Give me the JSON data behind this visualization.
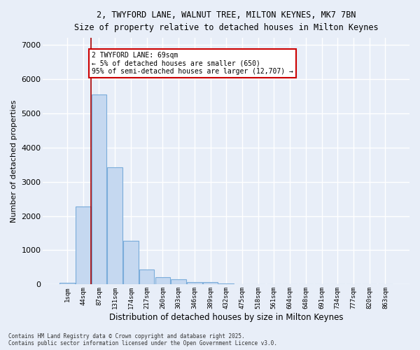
{
  "title_line1": "2, TWYFORD LANE, WALNUT TREE, MILTON KEYNES, MK7 7BN",
  "title_line2": "Size of property relative to detached houses in Milton Keynes",
  "xlabel": "Distribution of detached houses by size in Milton Keynes",
  "ylabel": "Number of detached properties",
  "categories": [
    "1sqm",
    "44sqm",
    "87sqm",
    "131sqm",
    "174sqm",
    "217sqm",
    "260sqm",
    "303sqm",
    "346sqm",
    "389sqm",
    "432sqm",
    "475sqm",
    "518sqm",
    "561sqm",
    "604sqm",
    "648sqm",
    "691sqm",
    "734sqm",
    "777sqm",
    "820sqm",
    "863sqm"
  ],
  "values": [
    50,
    2280,
    5550,
    3430,
    1280,
    430,
    210,
    160,
    80,
    60,
    20,
    0,
    0,
    0,
    0,
    0,
    0,
    0,
    0,
    0,
    0
  ],
  "bar_color": "#c5d8f0",
  "bar_edge_color": "#7aacda",
  "vline_x": 1.5,
  "vline_color": "#aa0000",
  "annotation_text": "2 TWYFORD LANE: 69sqm\n← 5% of detached houses are smaller (650)\n95% of semi-detached houses are larger (12,707) →",
  "annotation_box_color": "#ffffff",
  "annotation_box_edge_color": "#cc0000",
  "ylim": [
    0,
    7200
  ],
  "yticks": [
    0,
    1000,
    2000,
    3000,
    4000,
    5000,
    6000,
    7000
  ],
  "background_color": "#e8eef8",
  "grid_color": "#ffffff",
  "footer_line1": "Contains HM Land Registry data © Crown copyright and database right 2025.",
  "footer_line2": "Contains public sector information licensed under the Open Government Licence v3.0."
}
